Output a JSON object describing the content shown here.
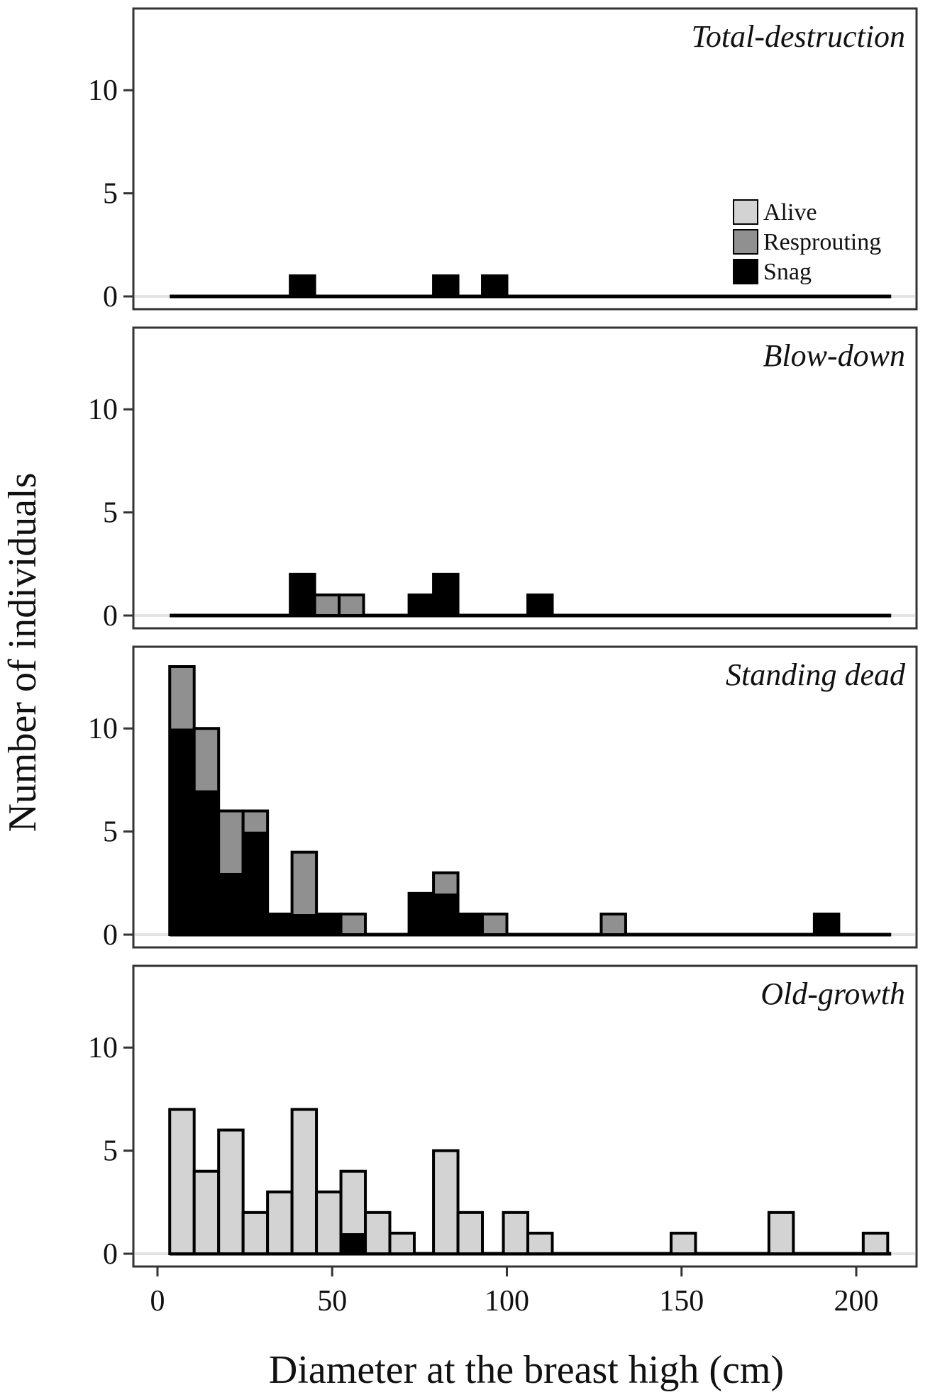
{
  "chart_data": {
    "type": "bar",
    "stacked": true,
    "xlabel": "Diameter at the breast high (cm)",
    "ylabel": "Number of individuals",
    "xlim": [
      0,
      210
    ],
    "ylim": [
      0,
      13
    ],
    "x_ticks": [
      0,
      50,
      100,
      150,
      200
    ],
    "y_ticks": [
      0,
      5,
      10
    ],
    "bin_width": 7,
    "bins_start": 3.5,
    "bins_end": 210,
    "colors": {
      "Alive": "#d3d3d3",
      "Resprouting": "#909090",
      "Snag": "#000000"
    },
    "legend": {
      "position": "inside-right",
      "panel": 0,
      "entries": [
        "Alive",
        "Resprouting",
        "Snag"
      ]
    },
    "panels": [
      {
        "title": "Total-destruction",
        "bars": [
          {
            "x0": 38,
            "x1": 45,
            "Alive": 0,
            "Resprouting": 0,
            "Snag": 1
          },
          {
            "x0": 79,
            "x1": 86,
            "Alive": 0,
            "Resprouting": 0,
            "Snag": 1
          },
          {
            "x0": 93,
            "x1": 100,
            "Alive": 0,
            "Resprouting": 0,
            "Snag": 1
          }
        ]
      },
      {
        "title": "Blow-down",
        "bars": [
          {
            "x0": 38,
            "x1": 45,
            "Alive": 0,
            "Resprouting": 0,
            "Snag": 2
          },
          {
            "x0": 45,
            "x1": 52,
            "Alive": 0,
            "Resprouting": 1,
            "Snag": 0
          },
          {
            "x0": 52,
            "x1": 59,
            "Alive": 0,
            "Resprouting": 1,
            "Snag": 0
          },
          {
            "x0": 72,
            "x1": 79,
            "Alive": 0,
            "Resprouting": 0,
            "Snag": 1
          },
          {
            "x0": 79,
            "x1": 86,
            "Alive": 0,
            "Resprouting": 0,
            "Snag": 2
          },
          {
            "x0": 106,
            "x1": 113,
            "Alive": 0,
            "Resprouting": 0,
            "Snag": 1
          }
        ]
      },
      {
        "title": "Standing dead",
        "bars": [
          {
            "x0": 3.5,
            "x1": 10.5,
            "Alive": 0,
            "Resprouting": 3,
            "Snag": 10
          },
          {
            "x0": 10.5,
            "x1": 17.5,
            "Alive": 0,
            "Resprouting": 3,
            "Snag": 7
          },
          {
            "x0": 17.5,
            "x1": 24.5,
            "Alive": 0,
            "Resprouting": 3,
            "Snag": 3
          },
          {
            "x0": 24.5,
            "x1": 31.5,
            "Alive": 0,
            "Resprouting": 1,
            "Snag": 5
          },
          {
            "x0": 31.5,
            "x1": 38.5,
            "Alive": 0,
            "Resprouting": 0,
            "Snag": 1
          },
          {
            "x0": 38.5,
            "x1": 45.5,
            "Alive": 0,
            "Resprouting": 3,
            "Snag": 1
          },
          {
            "x0": 45.5,
            "x1": 52.5,
            "Alive": 0,
            "Resprouting": 0,
            "Snag": 1
          },
          {
            "x0": 52.5,
            "x1": 59.5,
            "Alive": 0,
            "Resprouting": 1,
            "Snag": 0
          },
          {
            "x0": 72,
            "x1": 79,
            "Alive": 0,
            "Resprouting": 0,
            "Snag": 2
          },
          {
            "x0": 79,
            "x1": 86,
            "Alive": 0,
            "Resprouting": 1,
            "Snag": 2
          },
          {
            "x0": 86,
            "x1": 93,
            "Alive": 0,
            "Resprouting": 0,
            "Snag": 1
          },
          {
            "x0": 93,
            "x1": 100,
            "Alive": 0,
            "Resprouting": 1,
            "Snag": 0
          },
          {
            "x0": 127,
            "x1": 134,
            "Alive": 0,
            "Resprouting": 1,
            "Snag": 0
          },
          {
            "x0": 188,
            "x1": 195,
            "Alive": 0,
            "Resprouting": 0,
            "Snag": 1
          }
        ]
      },
      {
        "title": "Old-growth",
        "bars": [
          {
            "x0": 3.5,
            "x1": 10.5,
            "Alive": 7,
            "Resprouting": 0,
            "Snag": 0
          },
          {
            "x0": 10.5,
            "x1": 17.5,
            "Alive": 4,
            "Resprouting": 0,
            "Snag": 0
          },
          {
            "x0": 17.5,
            "x1": 24.5,
            "Alive": 6,
            "Resprouting": 0,
            "Snag": 0
          },
          {
            "x0": 24.5,
            "x1": 31.5,
            "Alive": 2,
            "Resprouting": 0,
            "Snag": 0
          },
          {
            "x0": 31.5,
            "x1": 38.5,
            "Alive": 3,
            "Resprouting": 0,
            "Snag": 0
          },
          {
            "x0": 38.5,
            "x1": 45.5,
            "Alive": 7,
            "Resprouting": 0,
            "Snag": 0
          },
          {
            "x0": 45.5,
            "x1": 52.5,
            "Alive": 3,
            "Resprouting": 0,
            "Snag": 0
          },
          {
            "x0": 52.5,
            "x1": 59.5,
            "Alive": 3,
            "Resprouting": 0,
            "Snag": 1
          },
          {
            "x0": 59.5,
            "x1": 66.5,
            "Alive": 2,
            "Resprouting": 0,
            "Snag": 0
          },
          {
            "x0": 66.5,
            "x1": 73.5,
            "Alive": 1,
            "Resprouting": 0,
            "Snag": 0
          },
          {
            "x0": 79,
            "x1": 86,
            "Alive": 5,
            "Resprouting": 0,
            "Snag": 0
          },
          {
            "x0": 86,
            "x1": 93,
            "Alive": 2,
            "Resprouting": 0,
            "Snag": 0
          },
          {
            "x0": 99,
            "x1": 106,
            "Alive": 2,
            "Resprouting": 0,
            "Snag": 0
          },
          {
            "x0": 106,
            "x1": 113,
            "Alive": 1,
            "Resprouting": 0,
            "Snag": 0
          },
          {
            "x0": 147,
            "x1": 154,
            "Alive": 1,
            "Resprouting": 0,
            "Snag": 0
          },
          {
            "x0": 175,
            "x1": 182,
            "Alive": 2,
            "Resprouting": 0,
            "Snag": 0
          },
          {
            "x0": 202,
            "x1": 209,
            "Alive": 1,
            "Resprouting": 0,
            "Snag": 0
          }
        ]
      }
    ]
  }
}
